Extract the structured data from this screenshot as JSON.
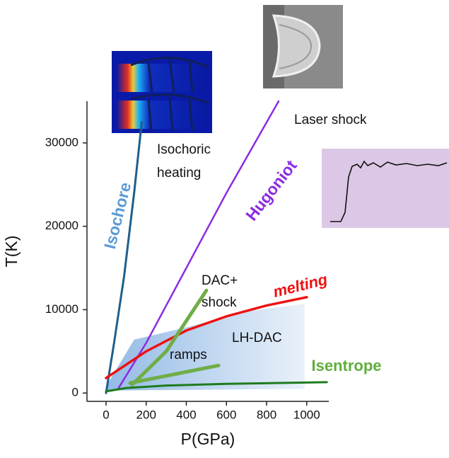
{
  "chart_data": {
    "type": "line",
    "x_label": "P(GPa)",
    "y_label": "T(K)",
    "xlim": [
      -95,
      1110
    ],
    "ylim": [
      -1000,
      35000
    ],
    "xticks": [
      0,
      200,
      400,
      600,
      800,
      1000
    ],
    "yticks": [
      0,
      10000,
      20000,
      30000
    ],
    "series": [
      {
        "name": "Isochore",
        "color": "#1f5f8b",
        "x": [
          0,
          10,
          40,
          90,
          140,
          178
        ],
        "values": [
          0,
          1500,
          6000,
          14000,
          24000,
          32500
        ]
      },
      {
        "name": "Hugoniot",
        "color": "#8a2be2",
        "x": [
          60,
          200,
          400,
          600,
          860
        ],
        "values": [
          500,
          6000,
          15000,
          24000,
          35000
        ]
      },
      {
        "name": "melting",
        "color": "#ee1111",
        "x": [
          0,
          200,
          400,
          600,
          800,
          1000
        ],
        "values": [
          1800,
          5000,
          7500,
          9200,
          10500,
          11500
        ]
      },
      {
        "name": "Isentrope",
        "color": "#1e7b1e",
        "x": [
          0,
          100,
          300,
          600,
          1100
        ],
        "values": [
          200,
          600,
          900,
          1100,
          1300
        ]
      },
      {
        "color": "#70ad47",
        "x": [
          130,
          300,
          500
        ],
        "values": [
          1000,
          5000,
          12300
        ]
      },
      {
        "color": "#70ad47",
        "x": [
          120,
          560
        ],
        "values": [
          1200,
          3300
        ]
      }
    ],
    "regions": [
      {
        "name": "LH-DAC",
        "color": "#6fa3dd",
        "x": [
          0,
          140,
          420,
          700,
          990,
          990,
          0
        ],
        "values": [
          800,
          6400,
          8000,
          9800,
          10700,
          500,
          300
        ]
      }
    ],
    "annotations": [
      "Isochoric",
      "heating",
      "Laser shock",
      "DAC+",
      "shock",
      "ramps"
    ]
  }
}
